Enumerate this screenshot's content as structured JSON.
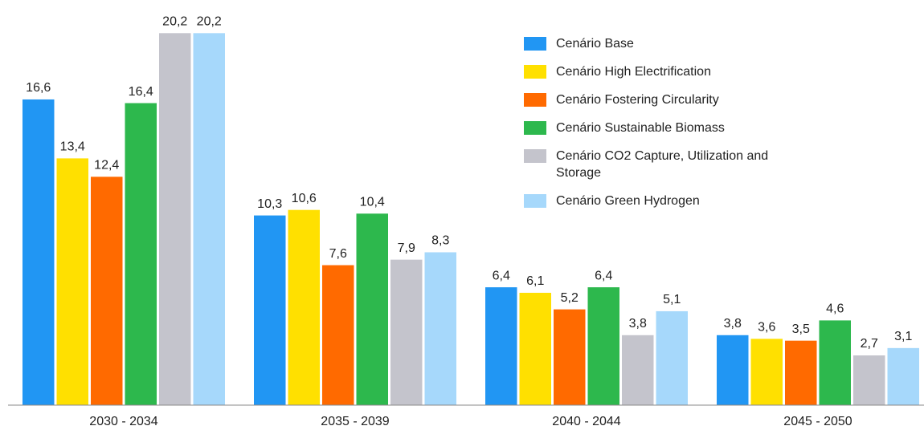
{
  "chart_data": {
    "type": "bar",
    "categories": [
      "2030 - 2034",
      "2035 - 2039",
      "2040 - 2044",
      "2045 - 2050"
    ],
    "ylim": [
      0,
      22
    ],
    "legend": "top-right",
    "series": [
      {
        "name": "Cenário Base",
        "color": "#2196f3",
        "values": [
          16.6,
          10.3,
          6.4,
          3.8
        ],
        "value_labels": [
          "16,6",
          "10,3",
          "6,4",
          "3,8"
        ]
      },
      {
        "name": "Cenário High Electrification",
        "color": "#ffe000",
        "values": [
          13.4,
          10.6,
          6.1,
          3.6
        ],
        "value_labels": [
          "13,4",
          "10,6",
          "6,1",
          "3,6"
        ]
      },
      {
        "name": "Cenário Fostering Circularity",
        "color": "#ff6a00",
        "values": [
          12.4,
          7.6,
          5.2,
          3.5
        ],
        "value_labels": [
          "12,4",
          "7,6",
          "5,2",
          "3,5"
        ]
      },
      {
        "name": "Cenário Sustainable Biomass",
        "color": "#2db84d",
        "values": [
          16.4,
          10.4,
          6.4,
          4.6
        ],
        "value_labels": [
          "16,4",
          "10,4",
          "6,4",
          "4,6"
        ]
      },
      {
        "name": "Cenário CO2 Capture, Utilization and Storage",
        "color": "#c4c4cc",
        "values": [
          20.2,
          7.9,
          3.8,
          2.7
        ],
        "value_labels": [
          "20,2",
          "7,9",
          "3,8",
          "2,7"
        ]
      },
      {
        "name": "Cenário Green Hydrogen",
        "color": "#a6d8fb",
        "values": [
          20.2,
          8.3,
          5.1,
          3.1
        ],
        "value_labels": [
          "20,2",
          "8,3",
          "5,1",
          "3,1"
        ]
      }
    ]
  }
}
